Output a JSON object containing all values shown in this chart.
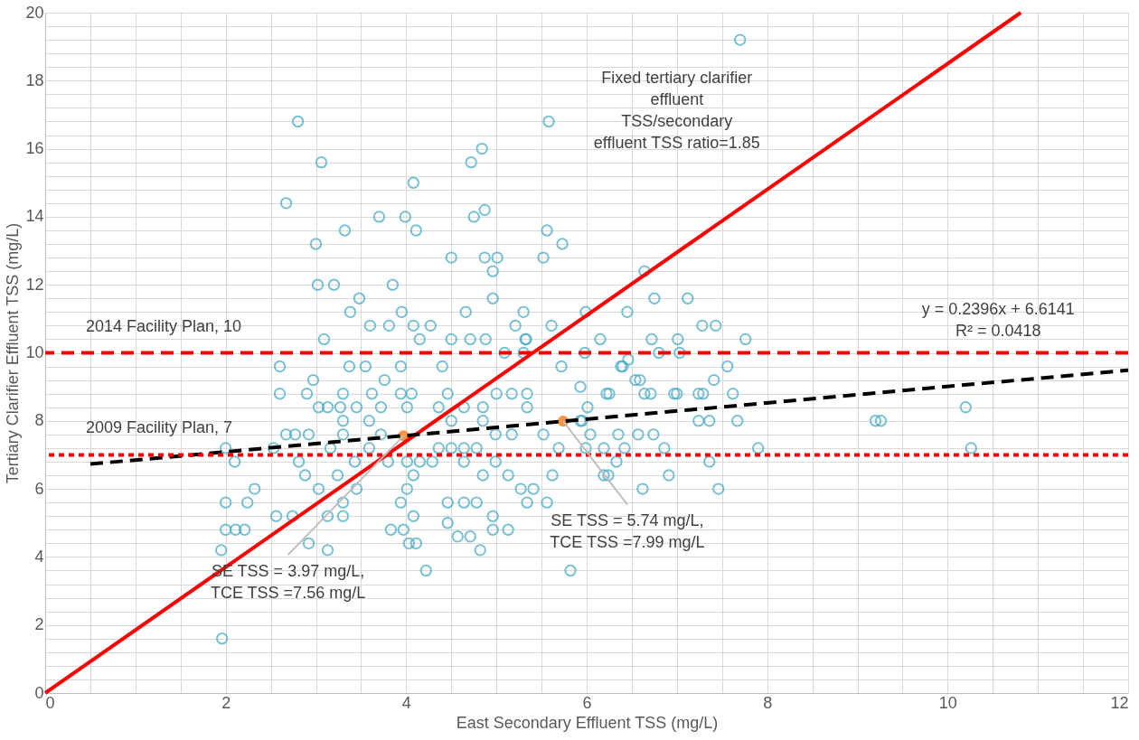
{
  "chart_data": {
    "type": "scatter",
    "xlabel": "East Secondary Effluent TSS (mg/L)",
    "ylabel": "Tertiary Clarifier Effluent TSS (mg/L)",
    "xlim": [
      0,
      12
    ],
    "ylim": [
      0,
      20
    ],
    "xticks": [
      0,
      {
        "value": 0.5,
        "label": null
      },
      {
        "value": 1,
        "label": null
      },
      {
        "value": 1.5,
        "label": null
      },
      2,
      {
        "value": 2.5,
        "label": null
      },
      {
        "value": 3,
        "label": null
      },
      {
        "value": 3.5,
        "label": null
      },
      4,
      {
        "value": 4.5,
        "label": null
      },
      {
        "value": 5,
        "label": null
      },
      {
        "value": 5.5,
        "label": null
      },
      6,
      {
        "value": 6.5,
        "label": null
      },
      {
        "value": 7,
        "label": null
      },
      {
        "value": 7.5,
        "label": null
      },
      8,
      {
        "value": 8.5,
        "label": null
      },
      {
        "value": 9,
        "label": null
      },
      {
        "value": 9.5,
        "label": null
      },
      10,
      {
        "value": 10.5,
        "label": null
      },
      {
        "value": 11,
        "label": null
      },
      {
        "value": 11.5,
        "label": null
      },
      12
    ],
    "yticks": [
      0,
      {
        "value": 0.4,
        "label": null
      },
      {
        "value": 0.8,
        "label": null
      },
      {
        "value": 1.2,
        "label": null
      },
      {
        "value": 1.6,
        "label": null
      },
      2,
      {
        "value": 2.4,
        "label": null
      },
      {
        "value": 2.8,
        "label": null
      },
      {
        "value": 3.2,
        "label": null
      },
      {
        "value": 3.6,
        "label": null
      },
      4,
      {
        "value": 4.4,
        "label": null
      },
      {
        "value": 4.8,
        "label": null
      },
      {
        "value": 5.2,
        "label": null
      },
      {
        "value": 5.6,
        "label": null
      },
      6,
      {
        "value": 6.4,
        "label": null
      },
      {
        "value": 6.8,
        "label": null
      },
      {
        "value": 7.2,
        "label": null
      },
      {
        "value": 7.6,
        "label": null
      },
      8,
      {
        "value": 8.4,
        "label": null
      },
      {
        "value": 8.8,
        "label": null
      },
      {
        "value": 9.2,
        "label": null
      },
      {
        "value": 9.6,
        "label": null
      },
      10,
      {
        "value": 10.4,
        "label": null
      },
      {
        "value": 10.8,
        "label": null
      },
      {
        "value": 11.2,
        "label": null
      },
      {
        "value": 11.6,
        "label": null
      },
      12,
      {
        "value": 12.4,
        "label": null
      },
      {
        "value": 12.8,
        "label": null
      },
      {
        "value": 13.2,
        "label": null
      },
      {
        "value": 13.6,
        "label": null
      },
      14,
      {
        "value": 14.4,
        "label": null
      },
      {
        "value": 14.8,
        "label": null
      },
      {
        "value": 15.2,
        "label": null
      },
      {
        "value": 15.6,
        "label": null
      },
      16,
      {
        "value": 16.4,
        "label": null
      },
      {
        "value": 16.8,
        "label": null
      },
      {
        "value": 17.2,
        "label": null
      },
      {
        "value": 17.6,
        "label": null
      },
      18,
      {
        "value": 18.4,
        "label": null
      },
      {
        "value": 18.8,
        "label": null
      },
      {
        "value": 19.2,
        "label": null
      },
      {
        "value": 19.6,
        "label": null
      },
      20
    ],
    "grid": true,
    "series": [
      {
        "marker": "circle",
        "color": "#4bacc6",
        "x": [
          7.7,
          2.8,
          3.06,
          2.67,
          4.08,
          4.84,
          4.72,
          5.58,
          3.7,
          3.99,
          4.11,
          3.32,
          3.0,
          4.75,
          4.87,
          5.56,
          5.73,
          5.52,
          4.5,
          4.87,
          5.01,
          4.96,
          4.96,
          3.02,
          3.2,
          3.85,
          3.48,
          3.38,
          3.95,
          4.66,
          5.3,
          3.6,
          3.81,
          4.08,
          4.27,
          5.21,
          5.61,
          3.09,
          4.15,
          4.5,
          4.71,
          4.88,
          5.32,
          6.15,
          2.6,
          3.37,
          3.55,
          4.4,
          5.72,
          2.97,
          2.6,
          2.9,
          3.3,
          5.0,
          5.93,
          6.64,
          6.75,
          7.12,
          6.45,
          5.99,
          7.28,
          7.43,
          7.76,
          6.72,
          7.01,
          6.8,
          7.03,
          6.46,
          6.38,
          7.56,
          7.41,
          6.54,
          7.62,
          7.24,
          7.0,
          6.64,
          6.22,
          10.2,
          10.26,
          9.2,
          9.26,
          7.9,
          7.46,
          7.67,
          7.36,
          6.91,
          6.62,
          6.24,
          7.36,
          7.24,
          7.29,
          6.97,
          6.86,
          6.57,
          6.74,
          6.35,
          6.42,
          6.33,
          5.99,
          5.95,
          6.25,
          6.71,
          6.59,
          6.4,
          5.33,
          1.96,
          2.0,
          2.0,
          2.11,
          2.21,
          1.95,
          2.24,
          2.32,
          2.1,
          2.0,
          2.67,
          2.77,
          2.92,
          2.53,
          2.81,
          2.88,
          3.03,
          2.56,
          2.74,
          2.92,
          3.13,
          3.03,
          3.13,
          3.27,
          3.45,
          3.3,
          3.3,
          3.16,
          3.43,
          3.24,
          3.3,
          3.13,
          3.3,
          3.45,
          3.59,
          3.72,
          3.59,
          3.62,
          3.76,
          3.94,
          3.94,
          4.06,
          4.01,
          3.72,
          4.01,
          4.15,
          4.29,
          4.08,
          4.01,
          3.94,
          4.08,
          3.97,
          4.03,
          4.11,
          4.22,
          3.83,
          3.8,
          4.36,
          4.5,
          4.64,
          4.78,
          4.46,
          4.36,
          4.64,
          4.85,
          5.17,
          5.34,
          5.34,
          5.17,
          4.99,
          4.85,
          4.5,
          4.64,
          4.85,
          4.99,
          5.13,
          5.27,
          5.41,
          5.62,
          5.69,
          5.52,
          4.64,
          4.78,
          4.46,
          4.46,
          4.96,
          4.96,
          4.82,
          5.13,
          5.34,
          5.56,
          5.82,
          4.57,
          4.71,
          5.09,
          5.3,
          5.98,
          6.01,
          5.93,
          6.04,
          6.19,
          6.19
        ],
        "values": [
          19.2,
          16.8,
          15.6,
          14.4,
          15.0,
          16.0,
          15.6,
          16.8,
          14.0,
          14.0,
          13.6,
          13.6,
          13.2,
          14.0,
          14.2,
          13.6,
          13.2,
          12.8,
          12.8,
          12.8,
          12.8,
          12.4,
          11.6,
          12.0,
          12.0,
          12.0,
          11.6,
          11.2,
          11.2,
          11.2,
          11.2,
          10.8,
          10.8,
          10.8,
          10.8,
          10.8,
          10.8,
          10.4,
          10.4,
          10.4,
          10.4,
          10.4,
          10.4,
          10.4,
          9.6,
          9.6,
          9.6,
          9.6,
          9.6,
          9.2,
          8.8,
          8.8,
          8.8,
          8.8,
          9.0,
          12.4,
          11.6,
          11.6,
          11.2,
          11.2,
          10.8,
          10.8,
          10.4,
          10.4,
          10.4,
          10.0,
          10.0,
          9.8,
          9.6,
          9.6,
          9.2,
          9.2,
          8.8,
          8.8,
          8.8,
          8.8,
          8.8,
          8.4,
          7.2,
          8.0,
          8.0,
          7.2,
          6.0,
          8.0,
          6.8,
          6.4,
          6.0,
          6.4,
          8.0,
          8.0,
          8.8,
          8.8,
          7.2,
          7.6,
          7.6,
          7.6,
          7.2,
          6.8,
          7.2,
          8.0,
          8.8,
          8.8,
          9.2,
          9.6,
          10.4,
          1.6,
          5.6,
          4.8,
          4.8,
          4.8,
          4.2,
          5.6,
          6.0,
          6.8,
          7.2,
          7.6,
          7.6,
          7.6,
          7.2,
          6.8,
          6.4,
          6.0,
          5.2,
          5.2,
          4.4,
          4.2,
          8.4,
          8.4,
          8.4,
          8.4,
          8.0,
          7.6,
          7.2,
          6.8,
          6.4,
          5.6,
          5.2,
          5.2,
          6.0,
          7.2,
          7.6,
          8.0,
          8.8,
          9.2,
          9.6,
          8.8,
          8.8,
          8.4,
          8.4,
          6.8,
          6.8,
          6.8,
          6.4,
          6.0,
          5.6,
          5.2,
          4.8,
          4.4,
          4.4,
          3.6,
          4.8,
          6.8,
          7.2,
          7.2,
          7.2,
          7.2,
          8.8,
          8.4,
          8.4,
          8.4,
          8.8,
          8.8,
          8.4,
          7.6,
          7.6,
          8.0,
          8.0,
          6.8,
          6.4,
          6.8,
          6.4,
          6.0,
          6.0,
          6.4,
          7.2,
          7.6,
          5.6,
          5.6,
          5.6,
          5.0,
          5.2,
          4.8,
          4.2,
          4.8,
          5.6,
          5.6,
          3.6,
          4.6,
          4.6,
          10.0,
          10.0,
          10.0,
          8.4,
          8.0,
          7.6,
          7.2,
          6.4
        ]
      },
      {
        "marker": "circle",
        "color": "#f79646",
        "x": [
          3.97,
          5.74
        ],
        "values": [
          7.56,
          7.99
        ]
      },
      {
        "type": "line",
        "color": "#ff0000",
        "line_style": "solid",
        "x": [
          0,
          10.81
        ],
        "values": [
          0,
          20
        ]
      },
      {
        "type": "line",
        "color": "#000000",
        "line_style": "dashed",
        "x": [
          0.5,
          12
        ],
        "values": [
          6.73,
          9.49
        ]
      }
    ],
    "ref_lines": [
      {
        "axis": "y",
        "value": 10,
        "label": "2014 Facility Plan, 10",
        "color": "#ff0000",
        "line_style": "dashed"
      },
      {
        "axis": "y",
        "value": 7,
        "label": "2009 Facility Plan, 7",
        "color": "#ff0000",
        "line_style": "dotted"
      }
    ],
    "annotations": [
      "Fixed tertiary clarifier\neffluent\nTSS/secondary\neffluent TSS ratio=1.85",
      "y = 0.2396x + 6.6141\nR² = 0.0418",
      {
        "text": "SE TSS = 3.97 mg/L,\nTCE TSS =7.56 mg/L",
        "x": 3.97,
        "y": 7.56
      },
      {
        "text": "SE TSS = 5.74 mg/L,\nTCE TSS =7.99 mg/L",
        "x": 5.74,
        "y": 7.99
      }
    ]
  }
}
